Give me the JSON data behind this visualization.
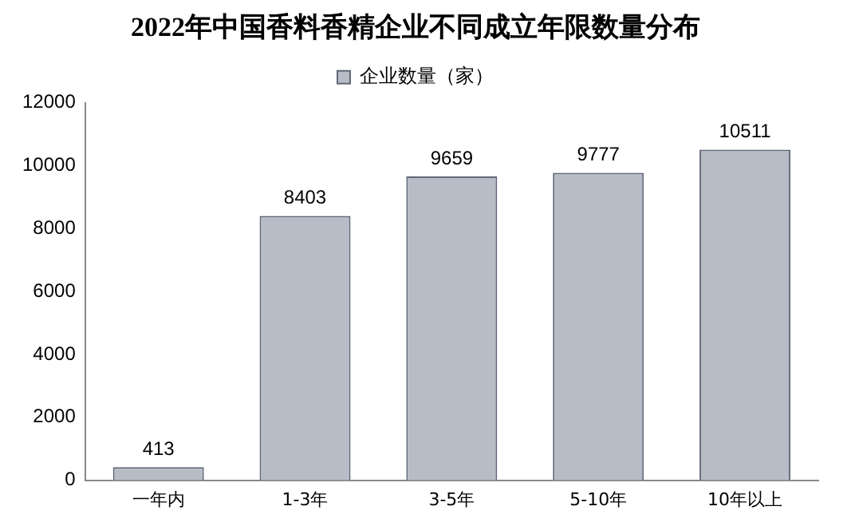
{
  "chart_data": {
    "type": "bar",
    "title": "2022年中国香料香精企业不同成立年限数量分布",
    "categories": [
      "一年内",
      "1-3年",
      "3-5年",
      "5-10年",
      "10年以上"
    ],
    "series": [
      {
        "name": "企业数量（家）",
        "color": "#b7bcc6",
        "values": [
          413,
          8403,
          9659,
          9777,
          10511
        ]
      }
    ],
    "ylim": [
      0,
      12000
    ],
    "yticks": [
      0,
      2000,
      4000,
      6000,
      8000,
      10000,
      12000
    ],
    "grid": false,
    "legend": "top",
    "data_labels": true
  }
}
